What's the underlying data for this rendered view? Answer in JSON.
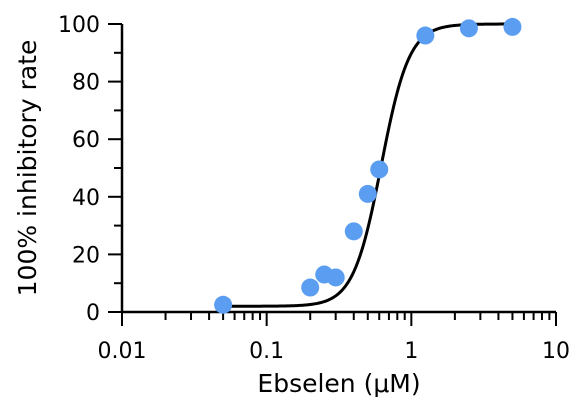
{
  "chart_data": {
    "type": "scatter",
    "title": "",
    "xlabel": "Ebselen (μM)",
    "ylabel": "100% inhibitory rate",
    "x_scale": "log",
    "xlim": [
      0.01,
      10
    ],
    "ylim": [
      0,
      100
    ],
    "x_tick_labels": [
      "0.01",
      "0.1",
      "1",
      "10"
    ],
    "x_tick_values": [
      0.01,
      0.1,
      1,
      10
    ],
    "y_tick_labels": [
      "0",
      "20",
      "40",
      "60",
      "80",
      "100"
    ],
    "y_tick_values": [
      0,
      20,
      40,
      60,
      80,
      100
    ],
    "points": [
      {
        "x": 0.05,
        "y": 2.5
      },
      {
        "x": 0.2,
        "y": 8.5
      },
      {
        "x": 0.25,
        "y": 13
      },
      {
        "x": 0.3,
        "y": 12
      },
      {
        "x": 0.4,
        "y": 28
      },
      {
        "x": 0.5,
        "y": 41
      },
      {
        "x": 0.6,
        "y": 49.5
      },
      {
        "x": 1.25,
        "y": 96
      },
      {
        "x": 2.5,
        "y": 98.5
      },
      {
        "x": 5,
        "y": 99
      }
    ],
    "fit": {
      "bottom": 2,
      "top": 100,
      "ic50": 0.62,
      "hill": 4.5,
      "x_range": [
        0.05,
        5
      ]
    },
    "point_color": "#5b9df0",
    "curve_color": "#000000",
    "grid": false,
    "legend": "none"
  }
}
